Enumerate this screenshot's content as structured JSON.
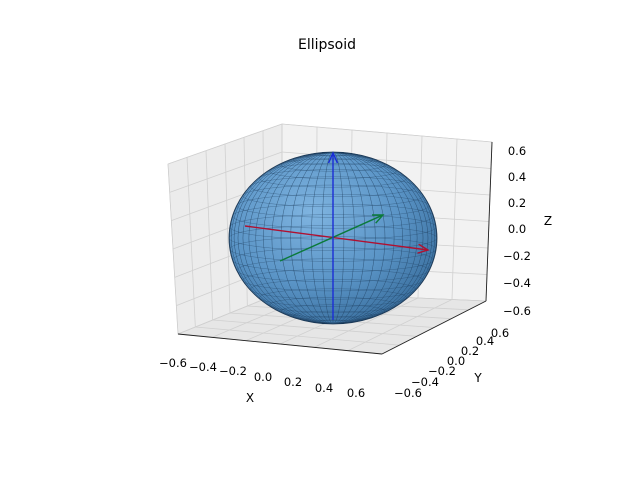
{
  "chart_data": {
    "type": "surface3d",
    "title": "Ellipsoid",
    "xlabel": "X",
    "ylabel": "Y",
    "zlabel": "Z",
    "xlim": [
      -0.6,
      0.6
    ],
    "ylim": [
      -0.6,
      0.6
    ],
    "zlim": [
      -0.6,
      0.6
    ],
    "x_ticks": [
      "−0.6",
      "−0.4",
      "−0.2",
      "0.0",
      "0.2",
      "0.4",
      "0.6"
    ],
    "y_ticks": [
      "−0.6",
      "−0.4",
      "−0.2",
      "0.0",
      "0.2",
      "0.4",
      "0.6"
    ],
    "z_ticks": [
      "−0.6",
      "−0.4",
      "−0.2",
      "0.0",
      "0.2",
      "0.4",
      "0.6"
    ],
    "grid": true,
    "surface": {
      "shape": "ellipsoid",
      "center": [
        0,
        0,
        0
      ],
      "semi_axes": [
        0.5,
        0.5,
        0.5
      ],
      "color": "#5b9bd5",
      "edge_color": "#1f3f5f"
    },
    "arrows": [
      {
        "axis": "x",
        "from": [
          -0.5,
          0,
          0
        ],
        "to": [
          0.5,
          0,
          0
        ],
        "color": "#b01030"
      },
      {
        "axis": "y",
        "from": [
          0,
          -0.5,
          0
        ],
        "to": [
          0,
          0.5,
          0
        ],
        "color": "#0a7a3a"
      },
      {
        "axis": "z",
        "from": [
          0,
          0,
          -0.5
        ],
        "to": [
          0,
          0,
          0.5
        ],
        "color": "#1a2dd6"
      }
    ]
  }
}
